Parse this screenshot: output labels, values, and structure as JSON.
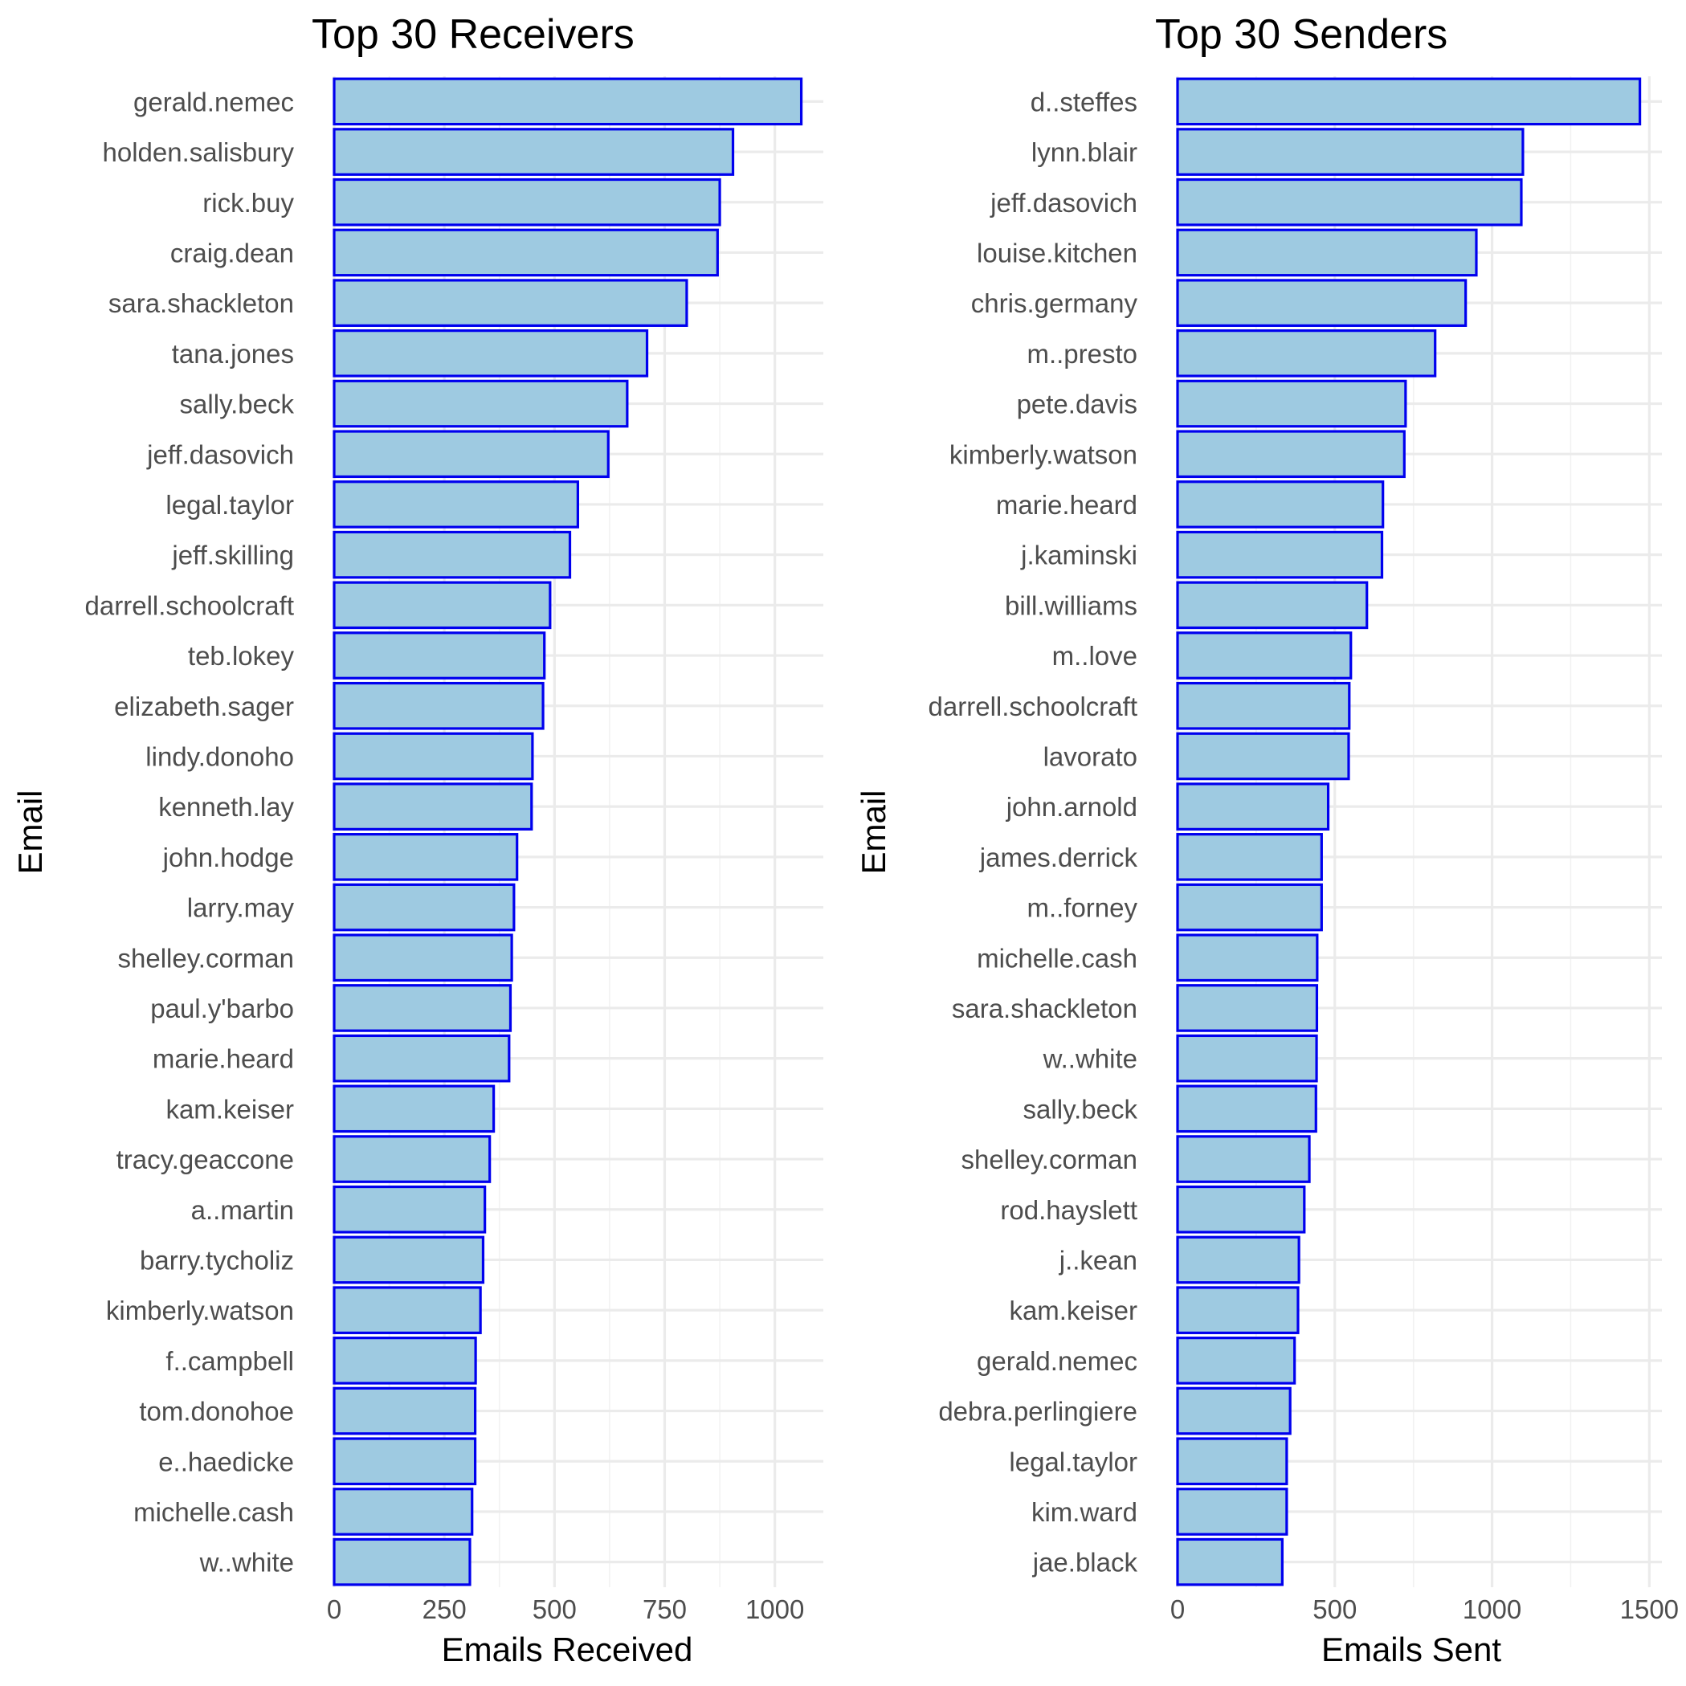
{
  "colors": {
    "bar_fill": "#9ecae1",
    "bar_outline": "#0000ee"
  },
  "chart_data": [
    {
      "type": "bar",
      "orientation": "horizontal",
      "title": "Top 30 Receivers",
      "xlabel": "Emails Received",
      "ylabel": "Email",
      "xlim": [
        0,
        1110
      ],
      "xticks": [
        0,
        250,
        500,
        750,
        1000
      ],
      "xtick_labels": [
        "0",
        "250",
        "500",
        "750",
        "1000"
      ],
      "grid": true,
      "categories": [
        "gerald.nemec",
        "holden.salisbury",
        "rick.buy",
        "craig.dean",
        "sara.shackleton",
        "tana.jones",
        "sally.beck",
        "jeff.dasovich",
        "legal.taylor",
        "jeff.skilling",
        "darrell.schoolcraft",
        "teb.lokey",
        "elizabeth.sager",
        "lindy.donoho",
        "kenneth.lay",
        "john.hodge",
        "larry.may",
        "shelley.corman",
        "paul.y'barbo",
        "marie.heard",
        "kam.keiser",
        "tracy.geaccone",
        "a..martin",
        "barry.tycholiz",
        "kimberly.watson",
        "f..campbell",
        "tom.donohoe",
        "e..haedicke",
        "michelle.cash",
        "w..white"
      ],
      "values": [
        1060,
        905,
        875,
        870,
        800,
        710,
        665,
        622,
        553,
        535,
        490,
        477,
        474,
        450,
        448,
        415,
        408,
        403,
        400,
        397,
        362,
        353,
        342,
        338,
        332,
        321,
        320,
        320,
        313,
        308
      ]
    },
    {
      "type": "bar",
      "orientation": "horizontal",
      "title": "Top 30 Senders",
      "xlabel": "Emails Sent",
      "ylabel": "Email",
      "xlim": [
        0,
        1540
      ],
      "xticks": [
        0,
        500,
        1000,
        1500
      ],
      "xtick_labels": [
        "0",
        "500",
        "1000",
        "1500"
      ],
      "grid": true,
      "categories": [
        "d..steffes",
        "lynn.blair",
        "jeff.dasovich",
        "louise.kitchen",
        "chris.germany",
        "m..presto",
        "pete.davis",
        "kimberly.watson",
        "marie.heard",
        "j.kaminski",
        "bill.williams",
        "m..love",
        "darrell.schoolcraft",
        "lavorato",
        "john.arnold",
        "james.derrick",
        "m..forney",
        "michelle.cash",
        "sara.shackleton",
        "w..white",
        "sally.beck",
        "shelley.corman",
        "rod.hayslett",
        "j..kean",
        "kam.keiser",
        "gerald.nemec",
        "debra.perlingiere",
        "legal.taylor",
        "kim.ward",
        "jae.black"
      ],
      "values": [
        1470,
        1098,
        1093,
        950,
        916,
        819,
        725,
        721,
        653,
        650,
        602,
        551,
        546,
        544,
        479,
        458,
        458,
        444,
        443,
        442,
        440,
        419,
        403,
        386,
        383,
        372,
        358,
        347,
        347,
        333
      ]
    }
  ]
}
